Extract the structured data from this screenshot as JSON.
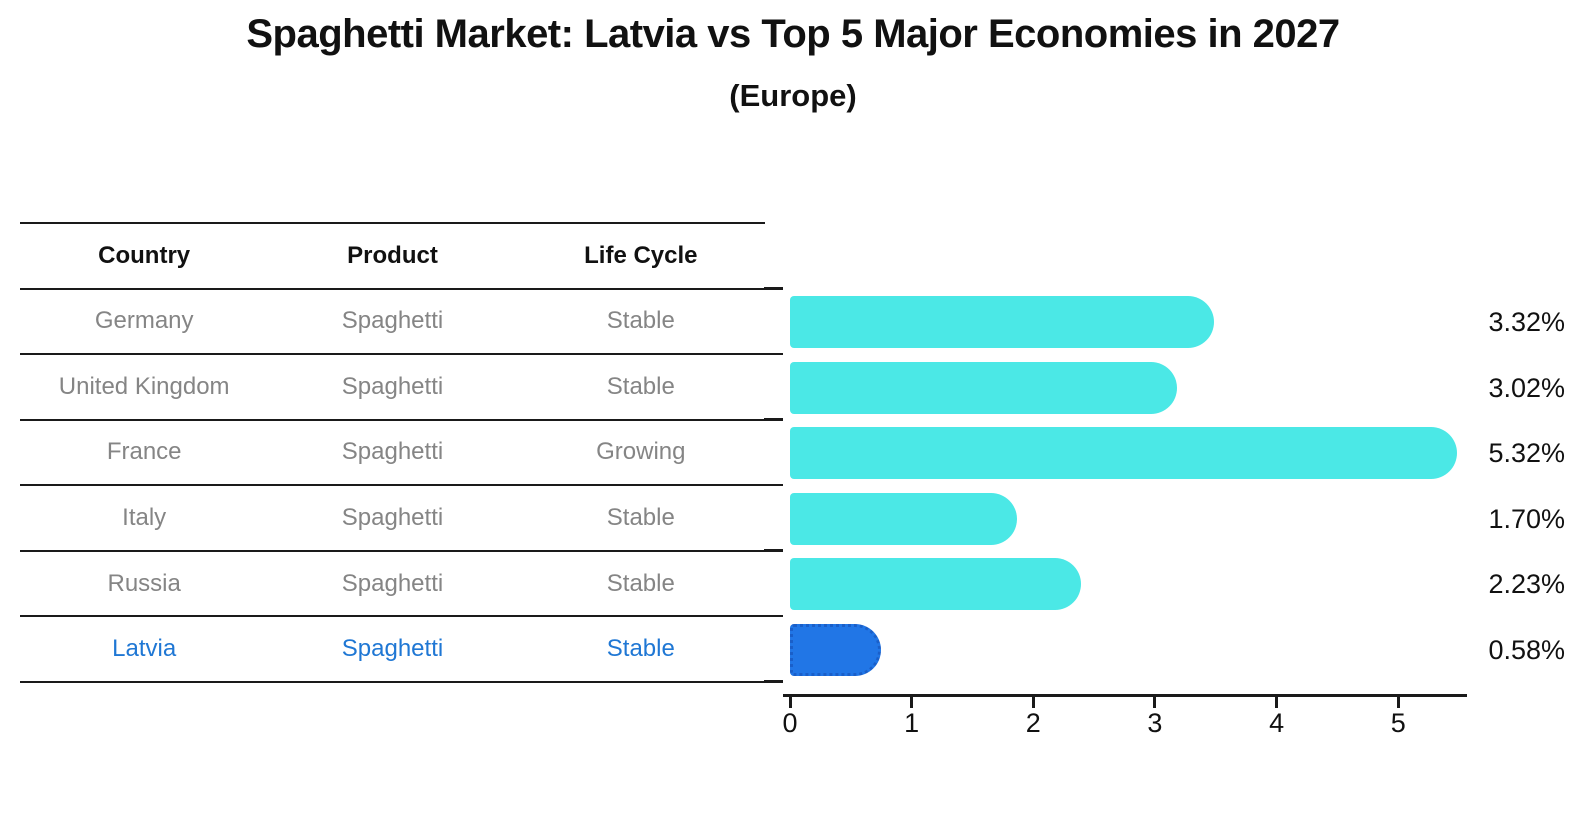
{
  "chart": {
    "title": "Spaghetti Market: Latvia vs Top 5 Major Economies in 2027",
    "subtitle": "(Europe)"
  },
  "table": {
    "headers": [
      "Country",
      "Product",
      "Life Cycle"
    ],
    "rows": [
      {
        "country": "Germany",
        "product": "Spaghetti",
        "life_cycle": "Stable",
        "highlighted": false
      },
      {
        "country": "United Kingdom",
        "product": "Spaghetti",
        "life_cycle": "Stable",
        "highlighted": false
      },
      {
        "country": "France",
        "product": "Spaghetti",
        "life_cycle": "Growing",
        "highlighted": false
      },
      {
        "country": "Italy",
        "product": "Spaghetti",
        "life_cycle": "Stable",
        "highlighted": false
      },
      {
        "country": "Russia",
        "product": "Spaghetti",
        "life_cycle": "Stable",
        "highlighted": false
      },
      {
        "country": "Latvia",
        "product": "Spaghetti",
        "life_cycle": "Stable",
        "highlighted": true
      }
    ]
  },
  "chart_data": {
    "type": "bar",
    "orientation": "horizontal",
    "title": "Spaghetti Market: Latvia vs Top 5 Major Economies in 2027 (Europe)",
    "categories": [
      "Germany",
      "United Kingdom",
      "France",
      "Italy",
      "Russia",
      "Latvia"
    ],
    "values": [
      3.32,
      3.02,
      5.32,
      1.7,
      2.23,
      0.58
    ],
    "value_labels": [
      "3.32%",
      "3.02%",
      "5.32%",
      "1.70%",
      "2.23%",
      "0.58%"
    ],
    "x_ticks": [
      "0",
      "1",
      "2",
      "3",
      "4",
      "5"
    ],
    "xlim": [
      0,
      5.6
    ],
    "grid": false,
    "legend": "none",
    "bar_color": "#4be8e6",
    "highlight_color": "#2176e6",
    "highlight_border_color": "#1a5fc9",
    "highlight_index": 5,
    "highlight_text_color": "#1f77d4",
    "table_text_color": "#858585"
  }
}
